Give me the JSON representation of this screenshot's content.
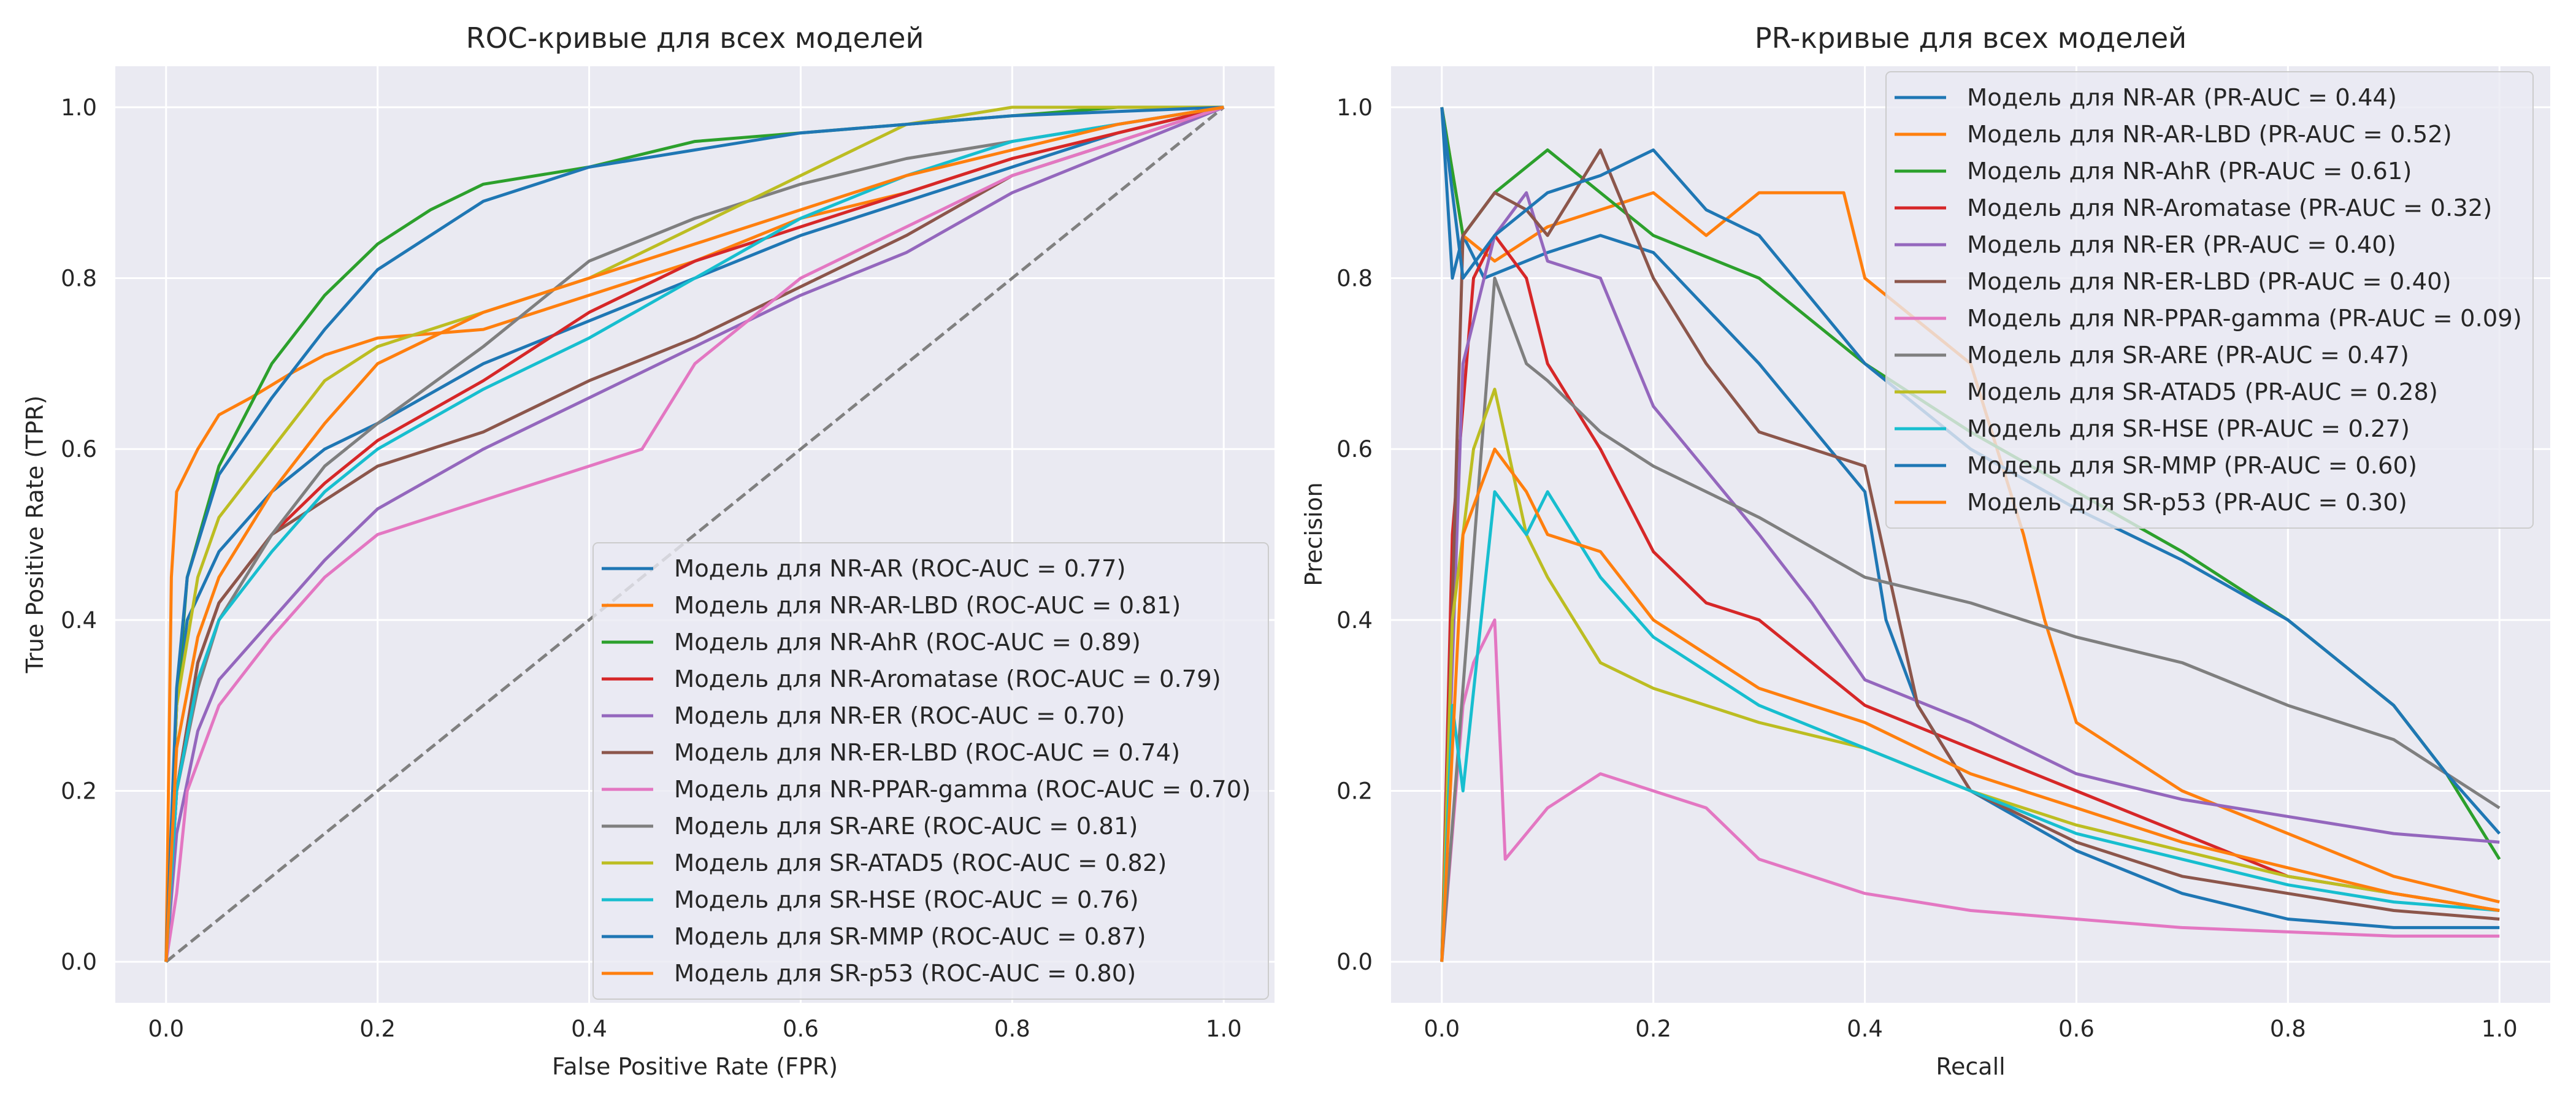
{
  "colors": {
    "background": "#eaeaf2",
    "grid": "#ffffff",
    "diagonal": "#808080",
    "legend_face": "#eaeaf2",
    "legend_edge": "#cccccc",
    "palette": [
      "#1f77b4",
      "#ff7f0e",
      "#2ca02c",
      "#d62728",
      "#9467bd",
      "#8c564b",
      "#e377c2",
      "#7f7f7f",
      "#bcbd22",
      "#17becf",
      "#1f77b4",
      "#ff7f0e"
    ]
  },
  "chart_data": [
    {
      "type": "line",
      "id": "roc",
      "title": "ROC-кривые для всех моделей",
      "xlabel": "False Positive Rate (FPR)",
      "ylabel": "True Positive Rate (TPR)",
      "xlim": [
        -0.048,
        1.048
      ],
      "ylim": [
        -0.048,
        1.048
      ],
      "xticks": [
        "0.0",
        "0.2",
        "0.4",
        "0.6",
        "0.8",
        "1.0"
      ],
      "yticks": [
        "0.0",
        "0.2",
        "0.4",
        "0.6",
        "0.8",
        "1.0"
      ],
      "grid": true,
      "legend_position": "lower right",
      "diagonal": true,
      "series": [
        {
          "name": "Модель для NR-AR",
          "label": "Модель для NR-AR (ROC-AUC = 0.77)",
          "auc": 0.77,
          "x": [
            0,
            0.01,
            0.02,
            0.05,
            0.1,
            0.15,
            0.2,
            0.3,
            0.4,
            0.5,
            0.6,
            0.7,
            0.8,
            0.9,
            1.0
          ],
          "y": [
            0,
            0.3,
            0.4,
            0.48,
            0.55,
            0.6,
            0.63,
            0.7,
            0.75,
            0.8,
            0.85,
            0.89,
            0.93,
            0.97,
            1.0
          ]
        },
        {
          "name": "Модель для NR-AR-LBD",
          "label": "Модель для NR-AR-LBD (ROC-AUC = 0.81)",
          "auc": 0.81,
          "x": [
            0,
            0.005,
            0.01,
            0.03,
            0.05,
            0.08,
            0.12,
            0.15,
            0.2,
            0.3,
            0.4,
            0.5,
            0.6,
            0.7,
            0.8,
            0.9,
            1.0
          ],
          "y": [
            0,
            0.45,
            0.55,
            0.6,
            0.64,
            0.66,
            0.69,
            0.71,
            0.73,
            0.74,
            0.78,
            0.82,
            0.87,
            0.9,
            0.94,
            0.97,
            1.0
          ]
        },
        {
          "name": "Модель для NR-AhR",
          "label": "Модель для NR-AhR (ROC-AUC = 0.89)",
          "auc": 0.89,
          "x": [
            0,
            0.01,
            0.02,
            0.05,
            0.1,
            0.15,
            0.2,
            0.25,
            0.3,
            0.4,
            0.5,
            0.6,
            0.7,
            0.8,
            0.9,
            1.0
          ],
          "y": [
            0,
            0.3,
            0.45,
            0.58,
            0.7,
            0.78,
            0.84,
            0.88,
            0.91,
            0.93,
            0.96,
            0.97,
            0.98,
            0.99,
            1.0,
            1.0
          ]
        },
        {
          "name": "Модель для NR-Aromatase",
          "label": "Модель для NR-Aromatase (ROC-AUC = 0.79)",
          "auc": 0.79,
          "x": [
            0,
            0.01,
            0.03,
            0.05,
            0.1,
            0.15,
            0.2,
            0.3,
            0.4,
            0.5,
            0.6,
            0.7,
            0.8,
            0.9,
            1.0
          ],
          "y": [
            0,
            0.2,
            0.35,
            0.42,
            0.5,
            0.56,
            0.61,
            0.68,
            0.76,
            0.82,
            0.86,
            0.9,
            0.94,
            0.97,
            1.0
          ]
        },
        {
          "name": "Модель для NR-ER",
          "label": "Модель для NR-ER (ROC-AUC = 0.70)",
          "auc": 0.7,
          "x": [
            0,
            0.01,
            0.03,
            0.05,
            0.1,
            0.15,
            0.2,
            0.3,
            0.4,
            0.5,
            0.6,
            0.7,
            0.8,
            0.9,
            1.0
          ],
          "y": [
            0,
            0.15,
            0.27,
            0.33,
            0.4,
            0.47,
            0.53,
            0.6,
            0.66,
            0.72,
            0.78,
            0.83,
            0.9,
            0.95,
            1.0
          ]
        },
        {
          "name": "Модель для NR-ER-LBD",
          "label": "Модель для NR-ER-LBD (ROC-AUC = 0.74)",
          "auc": 0.74,
          "x": [
            0,
            0.01,
            0.03,
            0.05,
            0.1,
            0.15,
            0.2,
            0.3,
            0.4,
            0.5,
            0.6,
            0.7,
            0.8,
            0.9,
            1.0
          ],
          "y": [
            0,
            0.2,
            0.35,
            0.42,
            0.5,
            0.54,
            0.58,
            0.62,
            0.68,
            0.73,
            0.79,
            0.85,
            0.92,
            0.96,
            1.0
          ]
        },
        {
          "name": "Модель для NR-PPAR-gamma",
          "label": "Модель для NR-PPAR-gamma (ROC-AUC = 0.70)",
          "auc": 0.7,
          "x": [
            0,
            0.01,
            0.02,
            0.05,
            0.1,
            0.15,
            0.2,
            0.3,
            0.35,
            0.4,
            0.45,
            0.5,
            0.6,
            0.7,
            0.8,
            0.9,
            1.0
          ],
          "y": [
            0,
            0.08,
            0.2,
            0.3,
            0.38,
            0.45,
            0.5,
            0.54,
            0.56,
            0.58,
            0.6,
            0.7,
            0.8,
            0.86,
            0.92,
            0.96,
            1.0
          ]
        },
        {
          "name": "Модель для SR-ARE",
          "label": "Модель для SR-ARE (ROC-AUC = 0.81)",
          "auc": 0.81,
          "x": [
            0,
            0.01,
            0.03,
            0.05,
            0.1,
            0.15,
            0.2,
            0.3,
            0.4,
            0.5,
            0.6,
            0.7,
            0.8,
            0.9,
            1.0
          ],
          "y": [
            0,
            0.2,
            0.32,
            0.4,
            0.5,
            0.58,
            0.63,
            0.72,
            0.82,
            0.87,
            0.91,
            0.94,
            0.96,
            0.98,
            1.0
          ]
        },
        {
          "name": "Модель для SR-ATAD5",
          "label": "Модель для SR-ATAD5 (ROC-AUC = 0.82)",
          "auc": 0.82,
          "x": [
            0,
            0.01,
            0.03,
            0.05,
            0.1,
            0.15,
            0.2,
            0.3,
            0.4,
            0.5,
            0.6,
            0.7,
            0.8,
            0.9,
            1.0
          ],
          "y": [
            0,
            0.3,
            0.45,
            0.52,
            0.6,
            0.68,
            0.72,
            0.76,
            0.8,
            0.86,
            0.92,
            0.98,
            1.0,
            1.0,
            1.0
          ]
        },
        {
          "name": "Модель для SR-HSE",
          "label": "Модель для SR-HSE (ROC-AUC = 0.76)",
          "auc": 0.76,
          "x": [
            0,
            0.01,
            0.03,
            0.05,
            0.1,
            0.15,
            0.2,
            0.3,
            0.4,
            0.5,
            0.6,
            0.7,
            0.8,
            0.9,
            1.0
          ],
          "y": [
            0,
            0.2,
            0.33,
            0.4,
            0.48,
            0.55,
            0.6,
            0.67,
            0.73,
            0.8,
            0.87,
            0.92,
            0.96,
            0.98,
            1.0
          ]
        },
        {
          "name": "Модель для SR-MMP",
          "label": "Модель для SR-MMP (ROC-AUC = 0.87)",
          "auc": 0.87,
          "x": [
            0,
            0.01,
            0.02,
            0.05,
            0.1,
            0.15,
            0.2,
            0.3,
            0.4,
            0.5,
            0.6,
            0.7,
            0.8,
            0.9,
            1.0
          ],
          "y": [
            0,
            0.32,
            0.45,
            0.57,
            0.66,
            0.74,
            0.81,
            0.89,
            0.93,
            0.95,
            0.97,
            0.98,
            0.99,
            0.995,
            1.0
          ]
        },
        {
          "name": "Модель для SR-p53",
          "label": "Модель для SR-p53 (ROC-AUC = 0.80)",
          "auc": 0.8,
          "x": [
            0,
            0.01,
            0.03,
            0.05,
            0.1,
            0.15,
            0.2,
            0.3,
            0.4,
            0.5,
            0.6,
            0.7,
            0.8,
            0.9,
            1.0
          ],
          "y": [
            0,
            0.25,
            0.38,
            0.45,
            0.55,
            0.63,
            0.7,
            0.76,
            0.8,
            0.84,
            0.88,
            0.92,
            0.95,
            0.98,
            1.0
          ]
        }
      ]
    },
    {
      "type": "line",
      "id": "pr",
      "title": "PR-кривые для всех моделей",
      "xlabel": "Recall",
      "ylabel": "Precision",
      "xlim": [
        -0.048,
        1.048
      ],
      "ylim": [
        -0.048,
        1.048
      ],
      "xticks": [
        "0.0",
        "0.2",
        "0.4",
        "0.6",
        "0.8",
        "1.0"
      ],
      "yticks": [
        "0.0",
        "0.2",
        "0.4",
        "0.6",
        "0.8",
        "1.0"
      ],
      "grid": true,
      "legend_position": "upper right",
      "series": [
        {
          "name": "Модель для NR-AR",
          "label": "Модель для NR-AR (PR-AUC = 0.44)",
          "auc": 0.44,
          "x": [
            0,
            0.01,
            0.02,
            0.04,
            0.1,
            0.15,
            0.2,
            0.3,
            0.4,
            0.42,
            0.45,
            0.5,
            0.6,
            0.7,
            0.8,
            0.9,
            1.0
          ],
          "y": [
            1.0,
            0.8,
            0.85,
            0.8,
            0.83,
            0.85,
            0.83,
            0.7,
            0.55,
            0.4,
            0.3,
            0.2,
            0.13,
            0.08,
            0.05,
            0.04,
            0.04
          ]
        },
        {
          "name": "Модель для NR-AR-LBD",
          "label": "Модель для NR-AR-LBD (PR-AUC = 0.52)",
          "auc": 0.52,
          "x": [
            0,
            0.02,
            0.05,
            0.1,
            0.15,
            0.2,
            0.25,
            0.3,
            0.38,
            0.4,
            0.5,
            0.55,
            0.57,
            0.6,
            0.7,
            0.8,
            0.9,
            1.0
          ],
          "y": [
            1.0,
            0.85,
            0.82,
            0.86,
            0.88,
            0.9,
            0.85,
            0.9,
            0.9,
            0.8,
            0.7,
            0.5,
            0.4,
            0.28,
            0.2,
            0.15,
            0.1,
            0.07
          ]
        },
        {
          "name": "Модель для NR-AhR",
          "label": "Модель для NR-AhR (PR-AUC = 0.61)",
          "auc": 0.61,
          "x": [
            0,
            0.02,
            0.05,
            0.1,
            0.15,
            0.2,
            0.3,
            0.4,
            0.5,
            0.6,
            0.7,
            0.8,
            0.9,
            0.95,
            1.0
          ],
          "y": [
            1.0,
            0.85,
            0.9,
            0.95,
            0.9,
            0.85,
            0.8,
            0.7,
            0.62,
            0.55,
            0.48,
            0.4,
            0.3,
            0.22,
            0.12
          ]
        },
        {
          "name": "Модель для NR-Aromatase",
          "label": "Модель для NR-Aromatase (PR-AUC = 0.32)",
          "auc": 0.32,
          "x": [
            0,
            0.01,
            0.03,
            0.05,
            0.08,
            0.1,
            0.15,
            0.2,
            0.25,
            0.3,
            0.4,
            0.5,
            0.6,
            0.7,
            0.8,
            0.9,
            1.0
          ],
          "y": [
            0,
            0.5,
            0.8,
            0.85,
            0.8,
            0.7,
            0.6,
            0.48,
            0.42,
            0.4,
            0.3,
            0.25,
            0.2,
            0.15,
            0.1,
            0.08,
            0.06
          ]
        },
        {
          "name": "Модель для NR-ER",
          "label": "Модель для NR-ER (PR-AUC = 0.40)",
          "auc": 0.4,
          "x": [
            0,
            0.02,
            0.05,
            0.08,
            0.1,
            0.15,
            0.2,
            0.3,
            0.35,
            0.4,
            0.5,
            0.6,
            0.7,
            0.8,
            0.9,
            1.0
          ],
          "y": [
            0,
            0.7,
            0.85,
            0.9,
            0.82,
            0.8,
            0.65,
            0.5,
            0.42,
            0.33,
            0.28,
            0.22,
            0.19,
            0.17,
            0.15,
            0.14
          ]
        },
        {
          "name": "Модель для NR-ER-LBD",
          "label": "Модель для NR-ER-LBD (PR-AUC = 0.40)",
          "auc": 0.4,
          "x": [
            0,
            0.02,
            0.05,
            0.08,
            0.1,
            0.15,
            0.2,
            0.25,
            0.3,
            0.4,
            0.45,
            0.5,
            0.6,
            0.7,
            0.8,
            0.9,
            1.0
          ],
          "y": [
            0,
            0.85,
            0.9,
            0.88,
            0.85,
            0.95,
            0.8,
            0.7,
            0.62,
            0.58,
            0.3,
            0.2,
            0.14,
            0.1,
            0.08,
            0.06,
            0.05
          ]
        },
        {
          "name": "Модель для NR-PPAR-gamma",
          "label": "Модель для NR-PPAR-gamma (PR-AUC = 0.09)",
          "auc": 0.09,
          "x": [
            0,
            0.02,
            0.03,
            0.05,
            0.06,
            0.1,
            0.15,
            0.2,
            0.25,
            0.3,
            0.4,
            0.5,
            0.6,
            0.7,
            0.8,
            0.9,
            1.0
          ],
          "y": [
            0,
            0.3,
            0.35,
            0.4,
            0.12,
            0.18,
            0.22,
            0.2,
            0.18,
            0.12,
            0.08,
            0.06,
            0.05,
            0.04,
            0.035,
            0.03,
            0.03
          ]
        },
        {
          "name": "Модель для SR-ARE",
          "label": "Модель для SR-ARE (PR-AUC = 0.47)",
          "auc": 0.47,
          "x": [
            0,
            0.05,
            0.08,
            0.1,
            0.15,
            0.2,
            0.3,
            0.4,
            0.5,
            0.6,
            0.7,
            0.8,
            0.9,
            0.95,
            1.0
          ],
          "y": [
            0,
            0.8,
            0.7,
            0.68,
            0.62,
            0.58,
            0.52,
            0.45,
            0.42,
            0.38,
            0.35,
            0.3,
            0.26,
            0.22,
            0.18
          ]
        },
        {
          "name": "Модель для SR-ATAD5",
          "label": "Модель для SR-ATAD5 (PR-AUC = 0.28)",
          "auc": 0.28,
          "x": [
            0,
            0.01,
            0.02,
            0.03,
            0.05,
            0.08,
            0.1,
            0.15,
            0.2,
            0.3,
            0.4,
            0.5,
            0.6,
            0.7,
            0.8,
            0.9,
            1.0
          ],
          "y": [
            0,
            0.4,
            0.5,
            0.6,
            0.67,
            0.5,
            0.45,
            0.35,
            0.32,
            0.28,
            0.25,
            0.2,
            0.16,
            0.13,
            0.1,
            0.08,
            0.06
          ]
        },
        {
          "name": "Модель для SR-HSE",
          "label": "Модель для SR-HSE (PR-AUC = 0.27)",
          "auc": 0.27,
          "x": [
            0,
            0.01,
            0.02,
            0.05,
            0.08,
            0.1,
            0.15,
            0.2,
            0.3,
            0.4,
            0.5,
            0.6,
            0.7,
            0.8,
            0.9,
            1.0
          ],
          "y": [
            0,
            0.3,
            0.2,
            0.55,
            0.5,
            0.55,
            0.45,
            0.38,
            0.3,
            0.25,
            0.2,
            0.15,
            0.12,
            0.09,
            0.07,
            0.06
          ]
        },
        {
          "name": "Модель для SR-MMP",
          "label": "Модель для SR-MMP (PR-AUC = 0.60)",
          "auc": 0.6,
          "x": [
            0,
            0.02,
            0.05,
            0.1,
            0.15,
            0.2,
            0.25,
            0.3,
            0.4,
            0.5,
            0.6,
            0.7,
            0.8,
            0.9,
            0.95,
            1.0
          ],
          "y": [
            1.0,
            0.8,
            0.85,
            0.9,
            0.92,
            0.95,
            0.88,
            0.85,
            0.7,
            0.6,
            0.53,
            0.47,
            0.4,
            0.3,
            0.22,
            0.15
          ]
        },
        {
          "name": "Модель для SR-p53",
          "label": "Модель для SR-p53 (PR-AUC = 0.30)",
          "auc": 0.3,
          "x": [
            0,
            0.02,
            0.05,
            0.08,
            0.1,
            0.15,
            0.2,
            0.3,
            0.4,
            0.5,
            0.6,
            0.7,
            0.8,
            0.9,
            1.0
          ],
          "y": [
            0,
            0.5,
            0.6,
            0.55,
            0.5,
            0.48,
            0.4,
            0.32,
            0.28,
            0.22,
            0.18,
            0.14,
            0.11,
            0.08,
            0.06
          ]
        }
      ]
    }
  ]
}
